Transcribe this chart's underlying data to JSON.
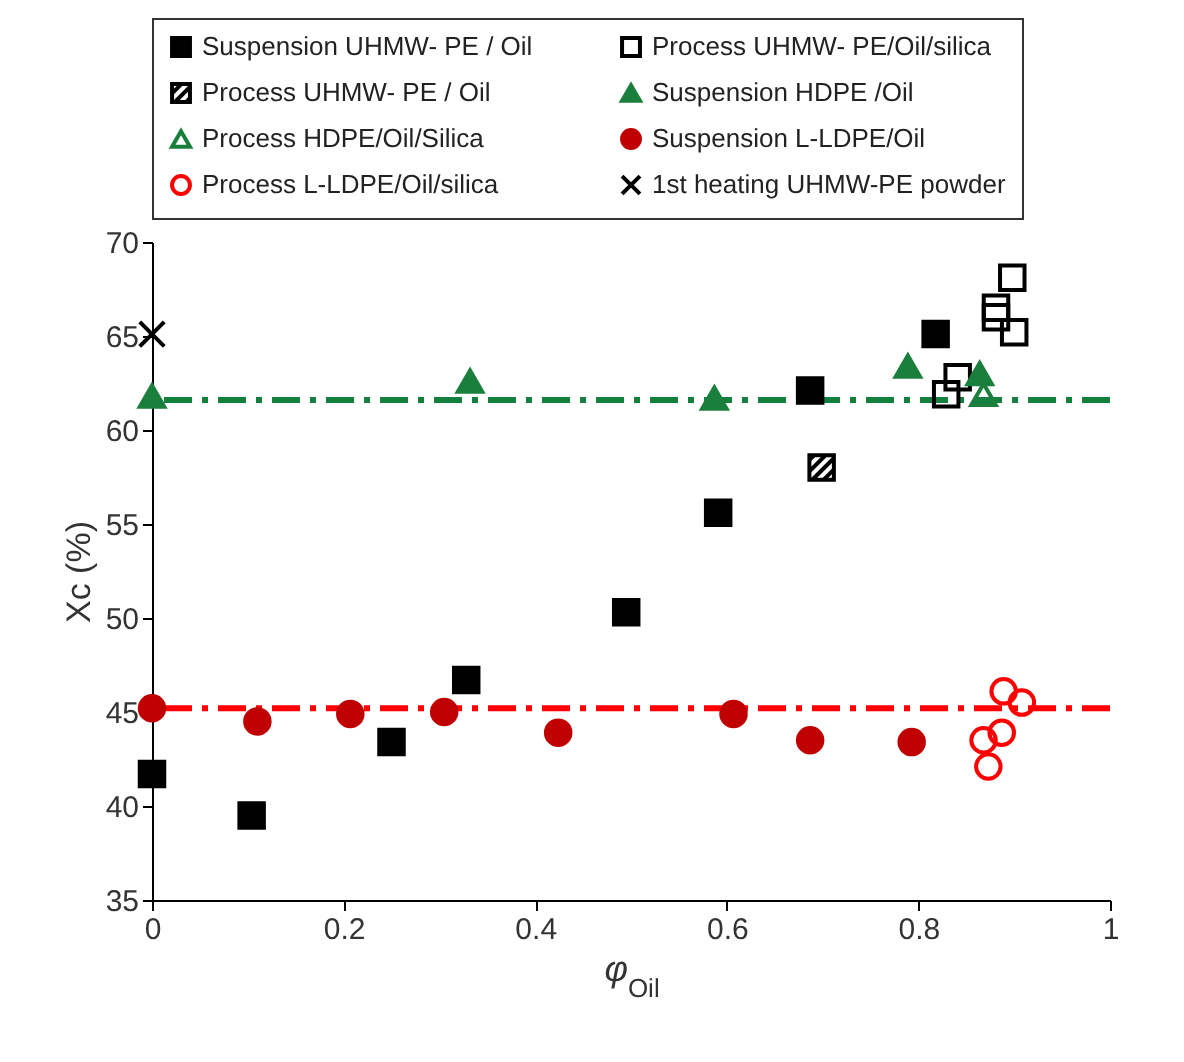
{
  "chart_data": {
    "type": "scatter",
    "xlabel": "φ$_{Oil}$",
    "ylabel": "Xc (%)",
    "xlim": [
      0,
      1
    ],
    "xticks": [
      0,
      0.2,
      0.4,
      0.6,
      0.8,
      1
    ],
    "ylim": [
      35,
      70
    ],
    "yticks": [
      35,
      40,
      45,
      50,
      55,
      60,
      65,
      70
    ],
    "grid": false,
    "legend": "top",
    "series": [
      {
        "name": "Suspension UHMW- PE / Oil",
        "color": "#000000",
        "marker": "square",
        "x": [
          0,
          0.104,
          0.25,
          0.328,
          0.495,
          0.591,
          0.687,
          0.818
        ],
        "values": [
          41.7,
          39.5,
          43.4,
          46.7,
          50.3,
          55.6,
          62.1,
          65.1
        ]
      },
      {
        "name": "Process UHMW- PE/Oil/silica",
        "color": "#000000",
        "marker": "square-open",
        "x": [
          0.898,
          0.881,
          0.881,
          0.9,
          0.829,
          0.841
        ],
        "values": [
          68.1,
          66.5,
          66.0,
          65.2,
          61.9,
          62.8
        ]
      },
      {
        "name": "Process UHMW- PE / Oil",
        "color": "#000000",
        "marker": "square-hatched",
        "x": [
          0.699
        ],
        "values": [
          58.0
        ]
      },
      {
        "name": "Suspension HDPE /Oil",
        "color": "#1a7f3c",
        "marker": "triangle",
        "x": [
          0,
          0.332,
          0.587,
          0.789,
          0.864
        ],
        "values": [
          61.8,
          62.6,
          61.7,
          63.4,
          63.0
        ]
      },
      {
        "name": "Process HDPE/Oil/Silica",
        "color": "#1a7f3c",
        "marker": "triangle-open",
        "x": [
          0.868
        ],
        "values": [
          61.9
        ]
      },
      {
        "name": "Suspension L-LDPE/Oil",
        "color": "#c00000",
        "marker": "circle",
        "x": [
          0,
          0.11,
          0.207,
          0.305,
          0.424,
          0.607,
          0.687,
          0.793
        ],
        "values": [
          45.2,
          44.5,
          44.9,
          45.0,
          43.9,
          44.9,
          43.5,
          43.4
        ]
      },
      {
        "name": "Process L-LDPE/Oil/silica",
        "color": "#ff0000",
        "marker": "circle-open",
        "x": [
          0.889,
          0.908,
          0.887,
          0.868,
          0.873
        ],
        "values": [
          46.1,
          45.5,
          43.9,
          43.5,
          42.1
        ]
      },
      {
        "name": "1st heating UHMW-PE powder",
        "color": "#000000",
        "marker": "cross",
        "x": [
          0
        ],
        "values": [
          65.1
        ]
      }
    ],
    "ref_lines": [
      {
        "axis": "y",
        "value": 61.6,
        "color": "#148040",
        "line_style": "dashed"
      },
      {
        "axis": "y",
        "value": 45.2,
        "color": "#ff0000",
        "line_style": "dashed"
      }
    ]
  }
}
